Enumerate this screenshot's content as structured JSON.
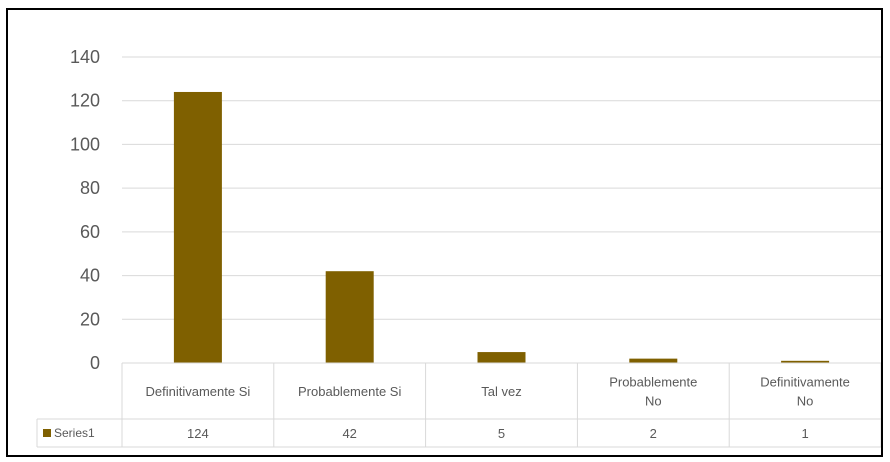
{
  "chart_data": {
    "type": "bar",
    "categories": [
      [
        "Definitivamente Si"
      ],
      [
        "Probablemente Si"
      ],
      [
        "Tal vez"
      ],
      [
        "Probablemente",
        "No"
      ],
      [
        "Definitivamente",
        "No"
      ]
    ],
    "series": [
      {
        "name": "Series1",
        "values": [
          124,
          42,
          5,
          2,
          1
        ],
        "color": "#7F6000"
      }
    ],
    "value_labels": [
      "124",
      "42",
      "5",
      "2",
      "1"
    ],
    "y_ticks": [
      "0",
      "20",
      "40",
      "60",
      "80",
      "100",
      "120",
      "140"
    ],
    "ylim": [
      0,
      140
    ],
    "grid": true,
    "data_table": true,
    "title": "",
    "xlabel": "",
    "ylabel": ""
  }
}
